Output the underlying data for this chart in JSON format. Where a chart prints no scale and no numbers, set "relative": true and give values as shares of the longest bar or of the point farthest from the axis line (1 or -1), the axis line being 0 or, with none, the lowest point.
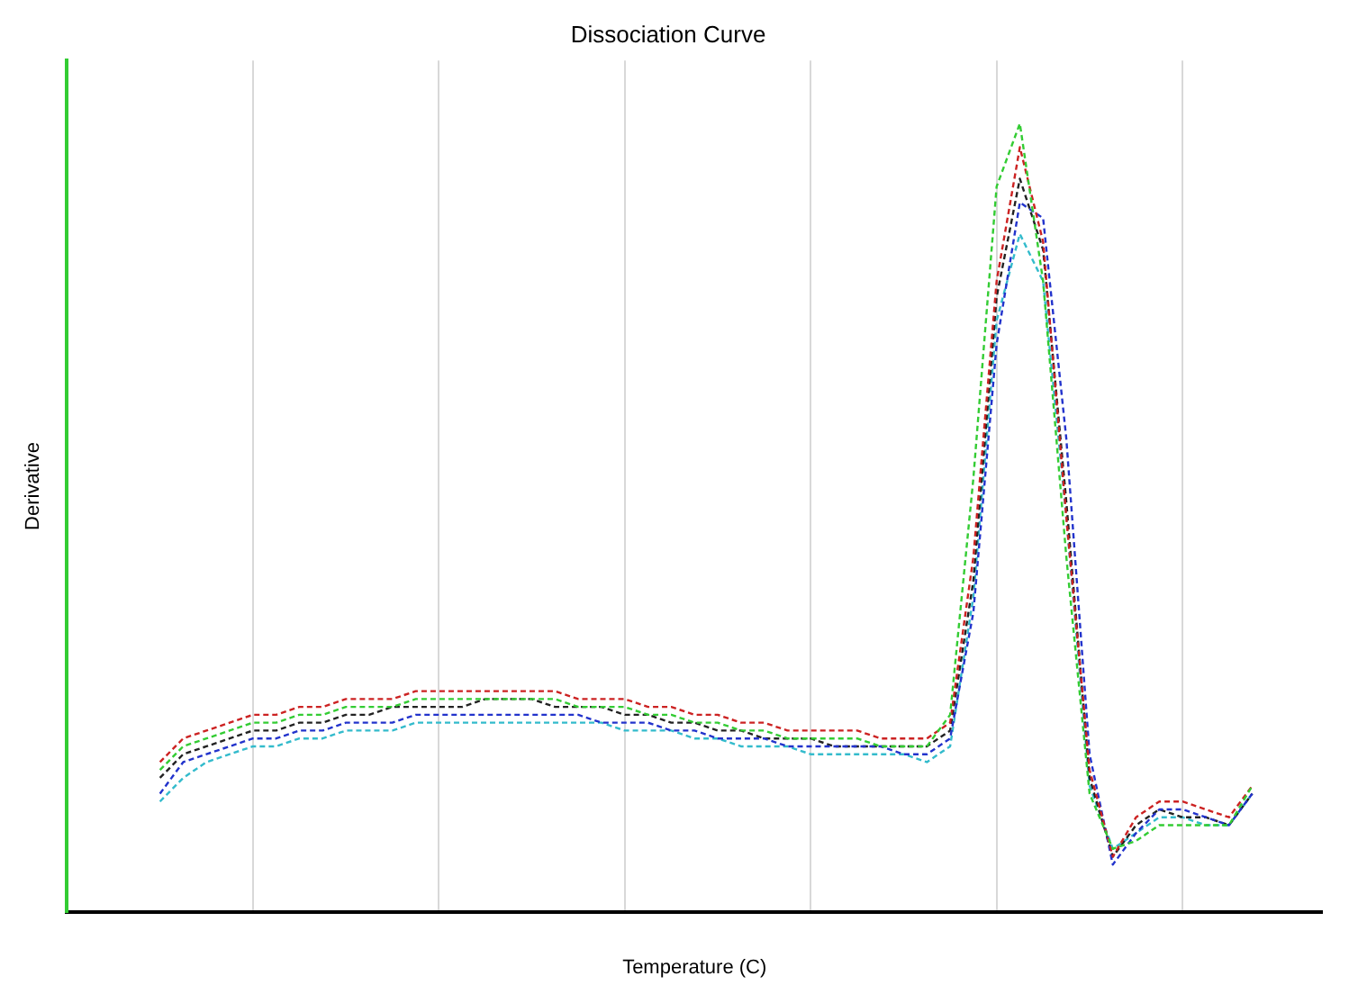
{
  "chart_data": {
    "type": "line",
    "title": "Dissociation Curve",
    "xlabel": "Temperature (C)",
    "ylabel": "Derivative",
    "relative": true,
    "grid": "x",
    "legend": false,
    "marker": "none",
    "line_style": "dashed",
    "categories": [
      null,
      null,
      null,
      null,
      null,
      null,
      null,
      null,
      null,
      null,
      null,
      null,
      null,
      null,
      null,
      null,
      null,
      null,
      null,
      null,
      null,
      null,
      null,
      null,
      null,
      null,
      null,
      null,
      null,
      null,
      null,
      null,
      null,
      null,
      null,
      null,
      null,
      null,
      null,
      null,
      null,
      null,
      null,
      null,
      null,
      null,
      null,
      null,
      null,
      null,
      null,
      null,
      null,
      null,
      null
    ],
    "series": [
      {
        "color": "#33cc33",
        "values": [
          null,
          null,
          null,
          null,
          0.18,
          0.21,
          0.22,
          0.23,
          0.24,
          0.24,
          0.25,
          0.25,
          0.26,
          0.26,
          0.26,
          0.27,
          0.27,
          0.27,
          0.27,
          0.27,
          0.27,
          0.27,
          0.26,
          0.26,
          0.26,
          0.25,
          0.25,
          0.24,
          0.24,
          0.23,
          0.23,
          0.22,
          0.22,
          0.22,
          0.22,
          0.21,
          0.21,
          0.21,
          0.25,
          0.55,
          0.92,
          1.0,
          0.8,
          0.45,
          0.15,
          0.08,
          0.09,
          0.11,
          0.11,
          0.11,
          0.11,
          0.16,
          null,
          null,
          null
        ]
      },
      {
        "color": "#cc2222",
        "values": [
          null,
          null,
          null,
          null,
          0.19,
          0.22,
          0.23,
          0.24,
          0.25,
          0.25,
          0.26,
          0.26,
          0.27,
          0.27,
          0.27,
          0.28,
          0.28,
          0.28,
          0.28,
          0.28,
          0.28,
          0.28,
          0.27,
          0.27,
          0.27,
          0.26,
          0.26,
          0.25,
          0.25,
          0.24,
          0.24,
          0.23,
          0.23,
          0.23,
          0.23,
          0.22,
          0.22,
          0.22,
          0.24,
          0.45,
          0.8,
          0.97,
          0.85,
          0.5,
          0.18,
          0.07,
          0.12,
          0.14,
          0.14,
          0.13,
          0.12,
          0.16,
          null,
          null,
          null
        ]
      },
      {
        "color": "#2233cc",
        "values": [
          null,
          null,
          null,
          null,
          0.15,
          0.19,
          0.2,
          0.21,
          0.22,
          0.22,
          0.23,
          0.23,
          0.24,
          0.24,
          0.24,
          0.25,
          0.25,
          0.25,
          0.25,
          0.25,
          0.25,
          0.25,
          0.25,
          0.24,
          0.24,
          0.24,
          0.23,
          0.23,
          0.22,
          0.22,
          0.22,
          0.21,
          0.21,
          0.21,
          0.21,
          0.21,
          0.2,
          0.2,
          0.22,
          0.38,
          0.72,
          0.9,
          0.88,
          0.6,
          0.2,
          0.06,
          0.1,
          0.13,
          0.13,
          0.12,
          0.11,
          0.15,
          null,
          null,
          null
        ]
      },
      {
        "color": "#222222",
        "values": [
          null,
          null,
          null,
          null,
          0.17,
          0.2,
          0.21,
          0.22,
          0.23,
          0.23,
          0.24,
          0.24,
          0.25,
          0.25,
          0.26,
          0.26,
          0.26,
          0.26,
          0.27,
          0.27,
          0.27,
          0.26,
          0.26,
          0.26,
          0.25,
          0.25,
          0.24,
          0.24,
          0.23,
          0.23,
          0.22,
          0.22,
          0.22,
          0.21,
          0.21,
          0.21,
          0.21,
          0.21,
          0.23,
          0.42,
          0.78,
          0.93,
          0.84,
          0.52,
          0.17,
          0.07,
          0.11,
          0.13,
          0.12,
          0.12,
          0.11,
          0.15,
          null,
          null,
          null
        ]
      },
      {
        "color": "#33bbcc",
        "values": [
          null,
          null,
          null,
          null,
          0.14,
          0.17,
          0.19,
          0.2,
          0.21,
          0.21,
          0.22,
          0.22,
          0.23,
          0.23,
          0.23,
          0.24,
          0.24,
          0.24,
          0.24,
          0.24,
          0.24,
          0.24,
          0.24,
          0.24,
          0.23,
          0.23,
          0.23,
          0.22,
          0.22,
          0.21,
          0.21,
          0.21,
          0.2,
          0.2,
          0.2,
          0.2,
          0.2,
          0.19,
          0.21,
          0.4,
          0.75,
          0.86,
          0.8,
          0.5,
          0.16,
          0.08,
          0.1,
          0.12,
          0.12,
          0.11,
          0.11,
          0.15,
          null,
          null,
          null
        ]
      }
    ]
  }
}
